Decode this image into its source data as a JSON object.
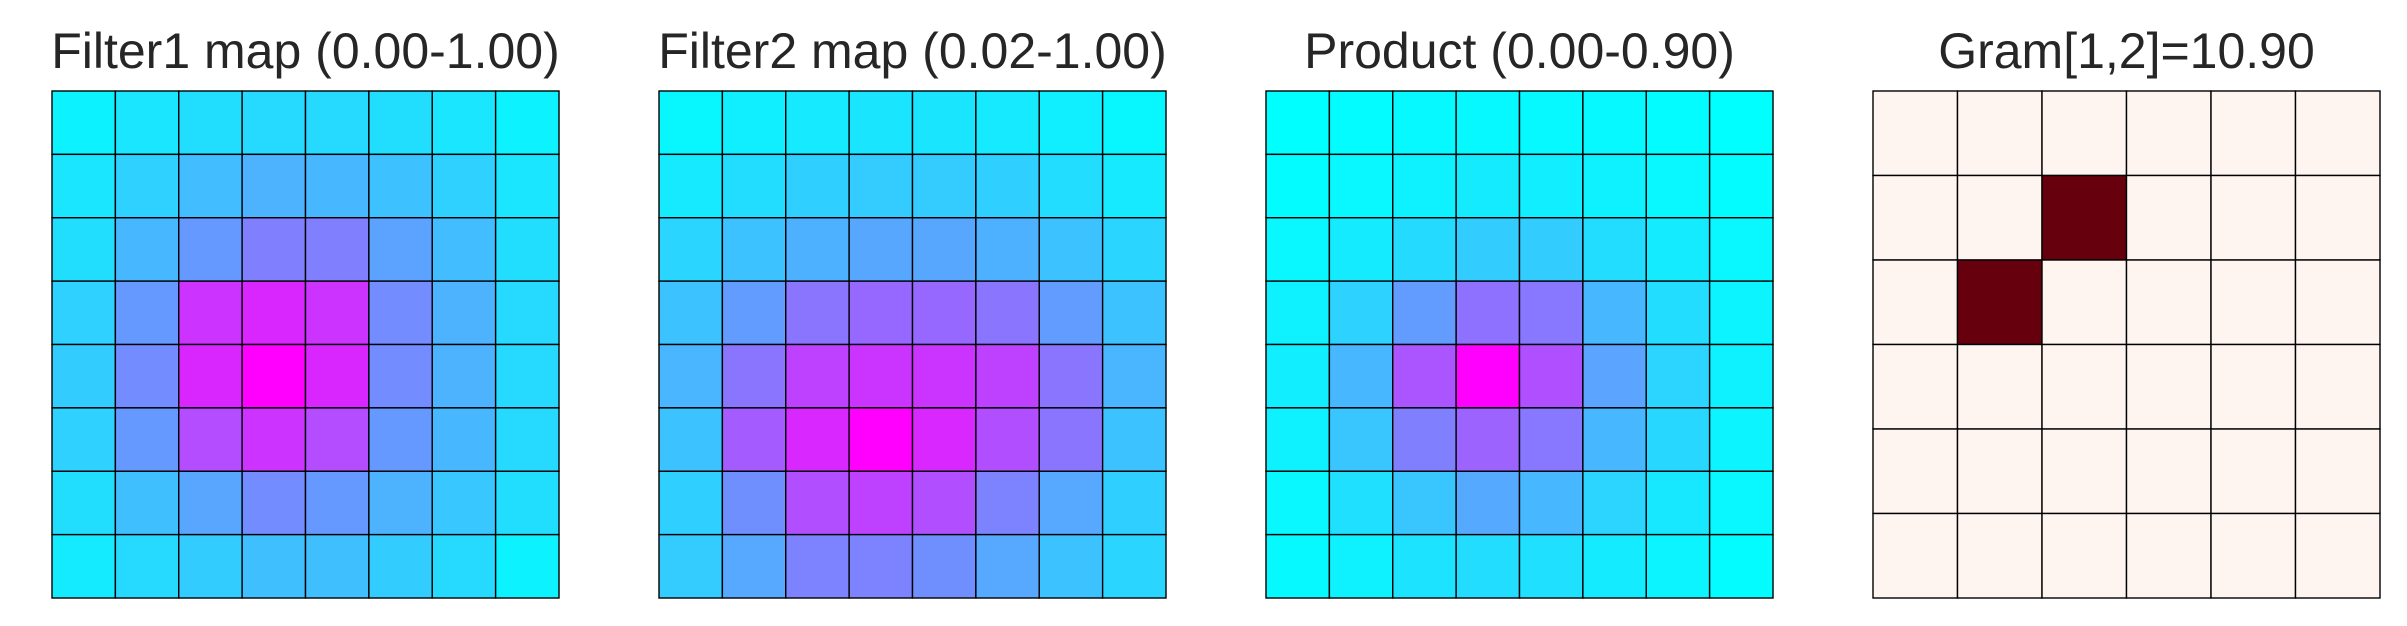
{
  "chart_data": [
    {
      "type": "heatmap",
      "title": "Filter1 map (0.00-1.00)",
      "colormap": "cool",
      "vmin": 0.0,
      "vmax": 1.0,
      "grid": true,
      "rows": 8,
      "cols": 8,
      "values": [
        [
          0.05,
          0.1,
          0.13,
          0.15,
          0.15,
          0.13,
          0.1,
          0.05
        ],
        [
          0.1,
          0.18,
          0.26,
          0.3,
          0.28,
          0.24,
          0.18,
          0.1
        ],
        [
          0.13,
          0.28,
          0.4,
          0.5,
          0.5,
          0.36,
          0.26,
          0.13
        ],
        [
          0.18,
          0.4,
          0.8,
          0.85,
          0.8,
          0.45,
          0.3,
          0.15
        ],
        [
          0.2,
          0.45,
          0.85,
          1.0,
          0.85,
          0.45,
          0.3,
          0.15
        ],
        [
          0.18,
          0.4,
          0.7,
          0.8,
          0.7,
          0.4,
          0.28,
          0.15
        ],
        [
          0.13,
          0.25,
          0.35,
          0.45,
          0.4,
          0.3,
          0.22,
          0.13
        ],
        [
          0.08,
          0.15,
          0.2,
          0.25,
          0.25,
          0.2,
          0.15,
          0.05
        ]
      ]
    },
    {
      "type": "heatmap",
      "title": "Filter2 map (0.02-1.00)",
      "colormap": "cool",
      "vmin": 0.02,
      "vmax": 1.0,
      "grid": true,
      "rows": 8,
      "cols": 8,
      "values": [
        [
          0.05,
          0.08,
          0.1,
          0.12,
          0.12,
          0.1,
          0.08,
          0.05
        ],
        [
          0.1,
          0.15,
          0.2,
          0.22,
          0.22,
          0.2,
          0.15,
          0.1
        ],
        [
          0.18,
          0.25,
          0.32,
          0.36,
          0.36,
          0.32,
          0.25,
          0.18
        ],
        [
          0.25,
          0.4,
          0.55,
          0.6,
          0.6,
          0.55,
          0.4,
          0.25
        ],
        [
          0.3,
          0.55,
          0.75,
          0.8,
          0.8,
          0.75,
          0.55,
          0.3
        ],
        [
          0.25,
          0.65,
          0.85,
          1.0,
          0.85,
          0.7,
          0.55,
          0.25
        ],
        [
          0.2,
          0.45,
          0.7,
          0.75,
          0.7,
          0.5,
          0.35,
          0.2
        ],
        [
          0.22,
          0.35,
          0.5,
          0.5,
          0.45,
          0.35,
          0.25,
          0.18
        ]
      ]
    },
    {
      "type": "heatmap",
      "title": "Product (0.00-0.90)",
      "colormap": "cool",
      "vmin": 0.0,
      "vmax": 0.9,
      "grid": true,
      "rows": 8,
      "cols": 8,
      "values": [
        [
          0.0,
          0.01,
          0.02,
          0.02,
          0.02,
          0.02,
          0.01,
          0.0
        ],
        [
          0.01,
          0.03,
          0.05,
          0.07,
          0.06,
          0.05,
          0.03,
          0.01
        ],
        [
          0.03,
          0.07,
          0.13,
          0.18,
          0.18,
          0.12,
          0.07,
          0.03
        ],
        [
          0.05,
          0.16,
          0.35,
          0.5,
          0.48,
          0.25,
          0.12,
          0.04
        ],
        [
          0.06,
          0.25,
          0.6,
          0.9,
          0.62,
          0.32,
          0.15,
          0.05
        ],
        [
          0.05,
          0.2,
          0.45,
          0.55,
          0.48,
          0.25,
          0.14,
          0.04
        ],
        [
          0.03,
          0.11,
          0.2,
          0.3,
          0.25,
          0.15,
          0.08,
          0.03
        ],
        [
          0.02,
          0.05,
          0.1,
          0.12,
          0.11,
          0.07,
          0.04,
          0.01
        ]
      ]
    },
    {
      "type": "heatmap",
      "title": "Gram[1,2]=10.90",
      "colormap": "reds",
      "grid": true,
      "rows": 6,
      "cols": 6,
      "values": [
        [
          0,
          0,
          0,
          0,
          0,
          0
        ],
        [
          0,
          0,
          10.9,
          0,
          0,
          0
        ],
        [
          0,
          10.9,
          0,
          0,
          0,
          0
        ],
        [
          0,
          0,
          0,
          0,
          0,
          0
        ],
        [
          0,
          0,
          0,
          0,
          0,
          0
        ],
        [
          0,
          0,
          0,
          0,
          0,
          0
        ]
      ]
    }
  ],
  "colors": {
    "reds_low": "#fff5f0",
    "reds_high": "#67000d",
    "grid_line": "#000000",
    "title_text": "#262626"
  }
}
